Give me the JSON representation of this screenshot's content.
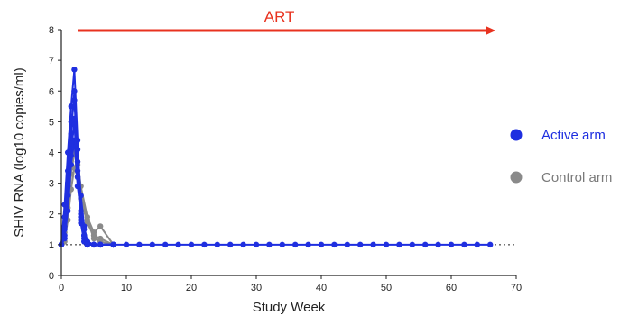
{
  "chart_data": {
    "type": "line",
    "xlabel": "Study Week",
    "ylabel": "SHIV RNA (log10 copies/ml)",
    "xlim": [
      0,
      70
    ],
    "ylim": [
      0,
      8
    ],
    "x_ticks": [
      0,
      10,
      20,
      30,
      40,
      50,
      60,
      70
    ],
    "y_ticks": [
      0,
      1,
      2,
      3,
      4,
      5,
      6,
      7,
      8
    ],
    "grid": false,
    "legend_position": "right",
    "limit_of_detection": 1,
    "treatment_annotation": {
      "label": "ART",
      "start_week": 2.5,
      "end_week": 66,
      "color": "#e8321f"
    },
    "series": [
      {
        "name": "Active arm",
        "color": "#1f2fe0",
        "animals": [
          {
            "x": [
              0,
              0.5,
              1,
              1.5,
              2,
              2.5,
              3,
              3.5,
              4,
              6,
              8,
              10,
              12,
              14,
              16,
              18,
              20,
              22,
              24,
              26,
              28,
              30,
              32,
              34,
              36,
              38,
              40,
              42,
              44,
              46,
              48,
              50,
              52,
              54,
              56,
              58,
              60,
              62,
              64,
              66
            ],
            "y": [
              1,
              2.3,
              4.0,
              5.5,
              6.7,
              4.4,
              2.0,
              1.3,
              1,
              1,
              1,
              1,
              1,
              1,
              1,
              1,
              1,
              1,
              1,
              1,
              1,
              1,
              1,
              1,
              1,
              1,
              1,
              1,
              1,
              1,
              1,
              1,
              1,
              1,
              1,
              1,
              1,
              1,
              1,
              1
            ]
          },
          {
            "x": [
              0,
              0.5,
              1,
              1.5,
              2,
              2.5,
              3,
              3.5,
              4,
              5,
              6,
              8
            ],
            "y": [
              1,
              1.5,
              3.0,
              4.6,
              6.0,
              4.1,
              2.6,
              1.6,
              1.1,
              1,
              1,
              1
            ]
          },
          {
            "x": [
              0,
              0.5,
              1,
              1.5,
              2,
              2.5,
              3,
              3.5,
              4,
              5,
              6,
              8
            ],
            "y": [
              1,
              1.9,
              3.4,
              5.0,
              5.7,
              3.7,
              1.9,
              1.2,
              1,
              1,
              1,
              1
            ]
          },
          {
            "x": [
              0,
              0.5,
              1,
              1.5,
              2,
              2.5,
              3,
              3.5,
              4,
              5,
              6,
              8
            ],
            "y": [
              1,
              1.3,
              2.6,
              3.9,
              5.1,
              3.2,
              1.7,
              1.1,
              1,
              1,
              1,
              1
            ]
          },
          {
            "x": [
              0,
              0.5,
              1,
              1.5,
              2,
              2.5,
              3,
              3.5,
              4,
              5,
              6,
              8
            ],
            "y": [
              1,
              1.2,
              2.1,
              3.6,
              4.4,
              2.9,
              2.1,
              1.5,
              1.1,
              1,
              1,
              1
            ]
          },
          {
            "x": [
              0,
              0.5,
              1,
              1.5,
              2,
              2.5,
              3,
              3.5,
              4,
              5,
              6,
              8
            ],
            "y": [
              1,
              1.6,
              2.9,
              4.3,
              4.9,
              3.4,
              1.8,
              1.3,
              1,
              1,
              1,
              1
            ]
          }
        ]
      },
      {
        "name": "Control arm",
        "color": "#8a8a8a",
        "animals": [
          {
            "x": [
              0,
              0.5,
              1,
              1.5,
              2,
              2.5,
              3,
              4,
              5,
              6,
              8
            ],
            "y": [
              1,
              1.2,
              2.2,
              3.3,
              4.0,
              3.7,
              2.9,
              1.9,
              1.4,
              1.6,
              1
            ]
          },
          {
            "x": [
              0,
              0.5,
              1,
              1.5,
              2,
              2.5,
              3,
              4,
              5,
              6,
              8
            ],
            "y": [
              1,
              1.1,
              1.8,
              2.8,
              3.5,
              3.2,
              2.5,
              1.7,
              1.3,
              1.2,
              1
            ]
          },
          {
            "x": [
              0,
              0.5,
              1,
              1.5,
              2,
              2.5,
              3,
              4,
              5,
              6,
              8
            ],
            "y": [
              1,
              1.4,
              2.5,
              3.6,
              4.2,
              3.6,
              2.6,
              1.8,
              1.2,
              1.1,
              1
            ]
          }
        ]
      }
    ]
  }
}
